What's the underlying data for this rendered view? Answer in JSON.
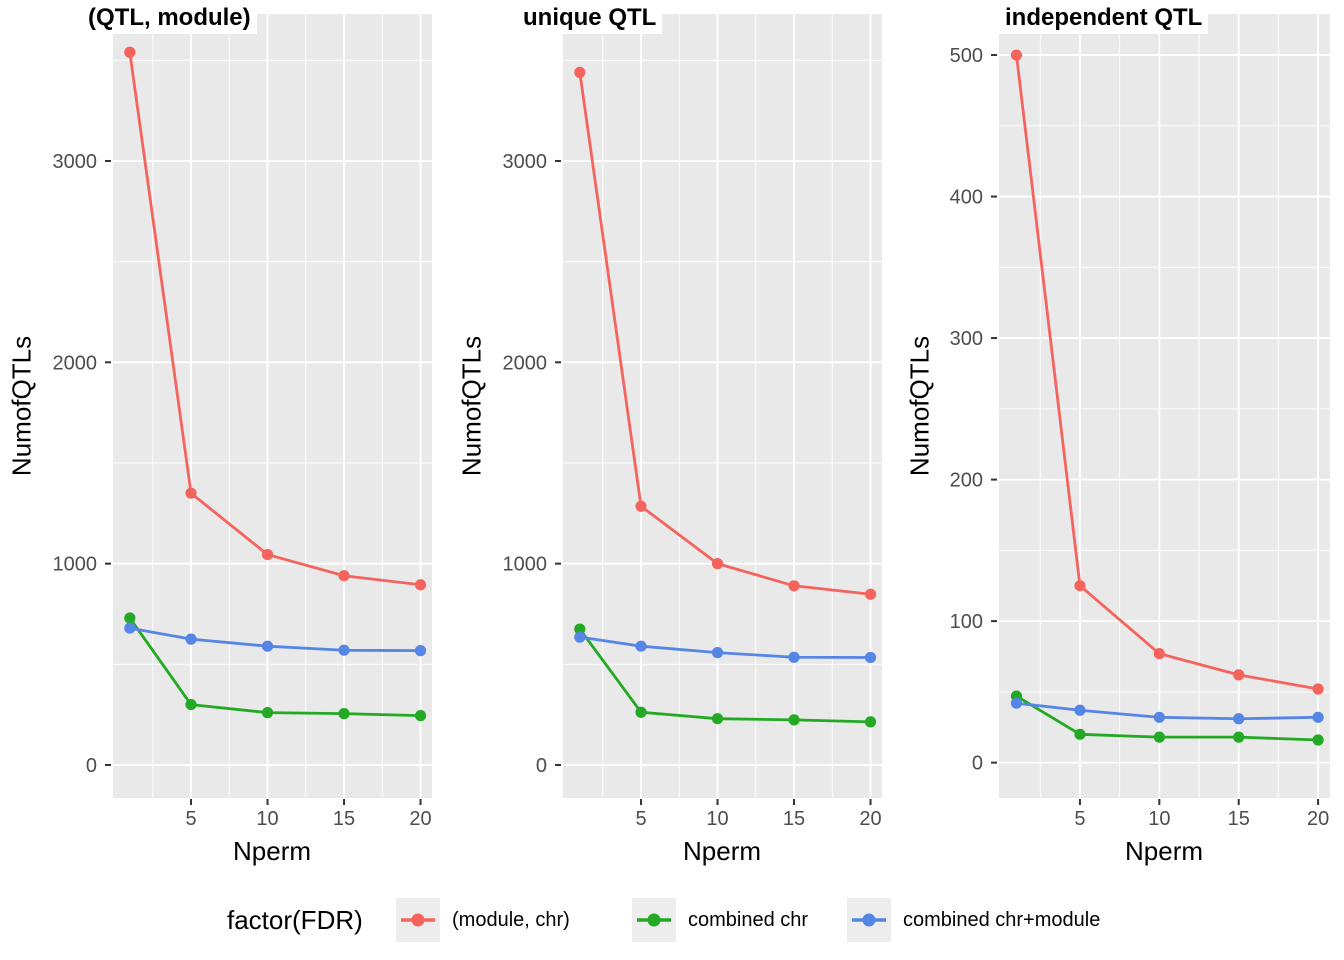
{
  "chart_data": [
    {
      "type": "line",
      "title": "(QTL, module)",
      "xlabel": "Nperm",
      "ylabel": "NumofQTLs",
      "x": [
        1,
        5,
        10,
        15,
        20
      ],
      "series": [
        {
          "name": "(module, chr)",
          "color": "#F4645D",
          "values": [
            3540,
            1350,
            1045,
            940,
            895
          ]
        },
        {
          "name": "combined chr",
          "color": "#23A923",
          "values": [
            730,
            300,
            260,
            255,
            245
          ]
        },
        {
          "name": "combined chr+module",
          "color": "#5585E5",
          "values": [
            680,
            625,
            590,
            570,
            568
          ]
        }
      ],
      "xlim": [
        -0.1,
        20.75
      ],
      "ylim": [
        -164,
        3730
      ],
      "xticks": [
        5,
        10,
        15,
        20
      ],
      "xminor": [
        2.5,
        7.5,
        12.5,
        17.5
      ],
      "yticks": [
        0,
        1000,
        2000,
        3000
      ],
      "yminor": [
        500,
        1500,
        2500,
        3500
      ],
      "grid": "on"
    },
    {
      "type": "line",
      "title": "unique QTL",
      "xlabel": "Nperm",
      "ylabel": "NumofQTLs",
      "x": [
        1,
        5,
        10,
        15,
        20
      ],
      "series": [
        {
          "name": "(module, chr)",
          "color": "#F4645D",
          "values": [
            3440,
            1285,
            1000,
            890,
            848
          ]
        },
        {
          "name": "combined chr",
          "color": "#23A923",
          "values": [
            675,
            262,
            230,
            224,
            214
          ]
        },
        {
          "name": "combined chr+module",
          "color": "#5585E5",
          "values": [
            635,
            590,
            558,
            535,
            534
          ]
        }
      ],
      "xlim": [
        -0.1,
        20.75
      ],
      "ylim": [
        -164,
        3730
      ],
      "xticks": [
        5,
        10,
        15,
        20
      ],
      "xminor": [
        2.5,
        7.5,
        12.5,
        17.5
      ],
      "yticks": [
        0,
        1000,
        2000,
        3000
      ],
      "yminor": [
        500,
        1500,
        2500,
        3500
      ],
      "grid": "on"
    },
    {
      "type": "line",
      "title": "independent QTL",
      "xlabel": "Nperm",
      "ylabel": "NumofQTLs",
      "x": [
        1,
        5,
        10,
        15,
        20
      ],
      "series": [
        {
          "name": "(module, chr)",
          "color": "#F4645D",
          "values": [
            500,
            125,
            77,
            62,
            52
          ]
        },
        {
          "name": "combined chr",
          "color": "#23A923",
          "values": [
            47,
            20,
            18,
            18,
            16
          ]
        },
        {
          "name": "combined chr+module",
          "color": "#5585E5",
          "values": [
            42,
            37,
            32,
            31,
            32
          ]
        }
      ],
      "xlim": [
        -0.1,
        20.75
      ],
      "ylim": [
        -25,
        529
      ],
      "xticks": [
        5,
        10,
        15,
        20
      ],
      "xminor": [
        2.5,
        7.5,
        12.5,
        17.5
      ],
      "yticks": [
        0,
        100,
        200,
        300,
        400,
        500
      ],
      "yminor": [
        50,
        150,
        250,
        350,
        450
      ],
      "grid": "on"
    }
  ],
  "legend": {
    "title": "factor(FDR)",
    "position": "bottom",
    "items": [
      {
        "label": "(module, chr)",
        "color": "#F4645D"
      },
      {
        "label": "combined chr",
        "color": "#23A923"
      },
      {
        "label": "combined chr+module",
        "color": "#5585E5"
      }
    ]
  },
  "style": {
    "panel_bg": "#E9E9E9",
    "grid_color": "#FFFFFF",
    "tick_label_color": "#4D4D4D",
    "tick_mark_color": "#333333",
    "legend_key_bg": "#EDEDED"
  }
}
